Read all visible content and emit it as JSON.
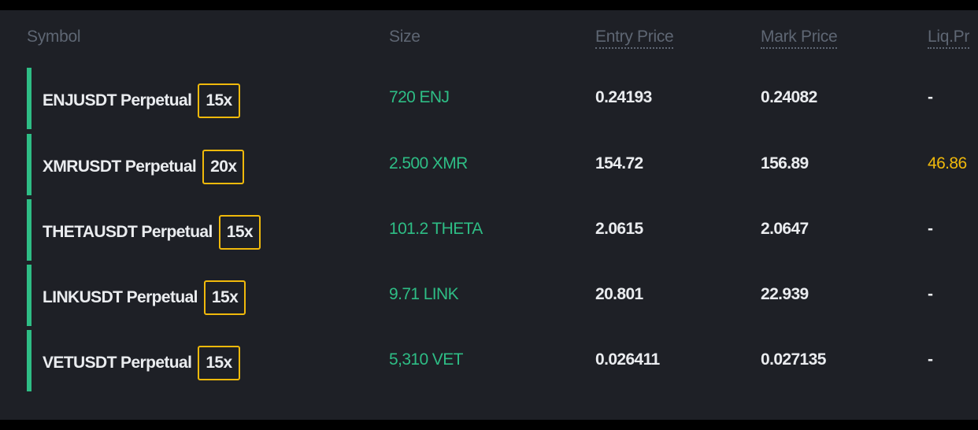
{
  "colors": {
    "background": "#1e2026",
    "header_text": "#5e6673",
    "long_bar": "#2ebd85",
    "size_text": "#2ebd85",
    "leverage_border": "#f0b90b",
    "liq_price_warning": "#f0b90b",
    "primary_text": "#eaecef"
  },
  "header": {
    "symbol": "Symbol",
    "size": "Size",
    "entry_price": "Entry Price",
    "mark_price": "Mark Price",
    "liq_price": "Liq.Pr"
  },
  "positions": [
    {
      "symbol": "ENJUSDT Perpetual",
      "leverage": "15x",
      "size": "720 ENJ",
      "entry_price": "0.24193",
      "mark_price": "0.24082",
      "liq_price": "-"
    },
    {
      "symbol": "XMRUSDT Perpetual",
      "leverage": "20x",
      "size": "2.500 XMR",
      "entry_price": "154.72",
      "mark_price": "156.89",
      "liq_price": "46.86"
    },
    {
      "symbol": "THETAUSDT Perpetual",
      "leverage": "15x",
      "size": "101.2 THETA",
      "entry_price": "2.0615",
      "mark_price": "2.0647",
      "liq_price": "-"
    },
    {
      "symbol": "LINKUSDT Perpetual",
      "leverage": "15x",
      "size": "9.71 LINK",
      "entry_price": "20.801",
      "mark_price": "22.939",
      "liq_price": "-"
    },
    {
      "symbol": "VETUSDT Perpetual",
      "leverage": "15x",
      "size": "5,310 VET",
      "entry_price": "0.026411",
      "mark_price": "0.027135",
      "liq_price": "-"
    }
  ]
}
